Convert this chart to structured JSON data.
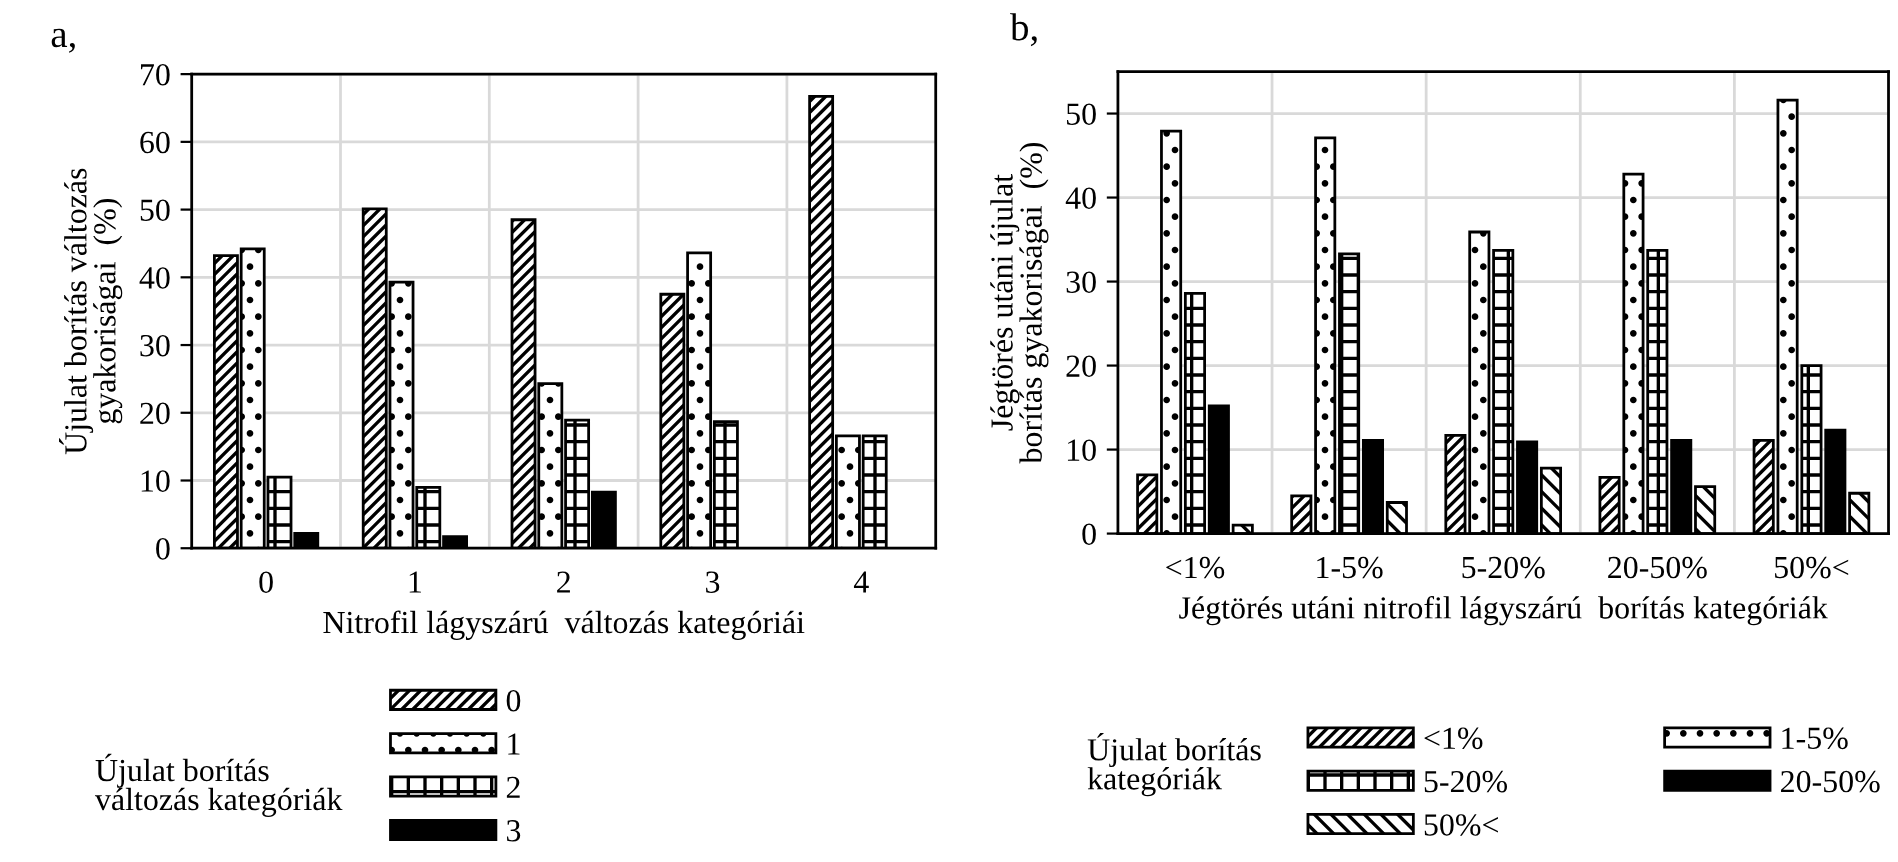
{
  "chart_data": [
    {
      "type": "bar",
      "title": "a,",
      "xlabel": "Nitrofil lágyszárú  változás kategóriái",
      "ylabel": "Újulat borítás változás\ngyakoriságai  (%)",
      "legend_title": "Újulat borítás\nváltozás kategóriák",
      "legend": "bottom",
      "grid": true,
      "categories": [
        "0",
        "1",
        "2",
        "3",
        "4"
      ],
      "series": [
        {
          "name": "0",
          "color": "#000000",
          "values": [
            43.2,
            50.1,
            48.5,
            37.5,
            66.7
          ]
        },
        {
          "name": "1",
          "color": "#000000",
          "values": [
            44.2,
            39.3,
            24.3,
            43.6,
            16.6
          ]
        },
        {
          "name": "2",
          "color": "#000000",
          "values": [
            10.5,
            9.0,
            18.9,
            18.7,
            16.6
          ]
        },
        {
          "name": "3",
          "color": "#000000",
          "values": [
            2.2,
            1.7,
            8.3,
            null,
            null
          ]
        }
      ],
      "ylim": [
        0,
        70
      ],
      "yticks": [
        0,
        10,
        20,
        30,
        40,
        50,
        60,
        70
      ]
    },
    {
      "type": "bar",
      "title": "b,",
      "xlabel": "Jégtörés utáni nitrofil lágyszárú  borítás kategóriák",
      "ylabel": "Jégtörés utáni újulat\nborítás gyakoriságai  (%)",
      "legend_title": "Újulat borítás\nkategóriák",
      "legend": "bottom",
      "grid": true,
      "categories": [
        "<1%",
        "1-5%",
        "5-20%",
        "20-50%",
        "50%<"
      ],
      "series": [
        {
          "name": "<1%",
          "color": "#000000",
          "values": [
            7.0,
            4.5,
            11.7,
            6.7,
            11.1
          ]
        },
        {
          "name": "1-5%",
          "color": "#000000",
          "values": [
            47.9,
            47.1,
            35.9,
            42.8,
            51.6
          ]
        },
        {
          "name": "5-20%",
          "color": "#000000",
          "values": [
            28.6,
            33.3,
            33.7,
            33.7,
            20.0
          ]
        },
        {
          "name": "20-50%",
          "color": "#000000",
          "values": [
            15.2,
            11.1,
            10.9,
            11.1,
            12.3
          ]
        },
        {
          "name": "50%<",
          "color": "#000000",
          "values": [
            1.0,
            3.7,
            7.8,
            5.6,
            4.8
          ]
        }
      ],
      "ylim": [
        0,
        55
      ],
      "yticks": [
        0,
        10,
        20,
        30,
        40,
        50
      ]
    }
  ]
}
